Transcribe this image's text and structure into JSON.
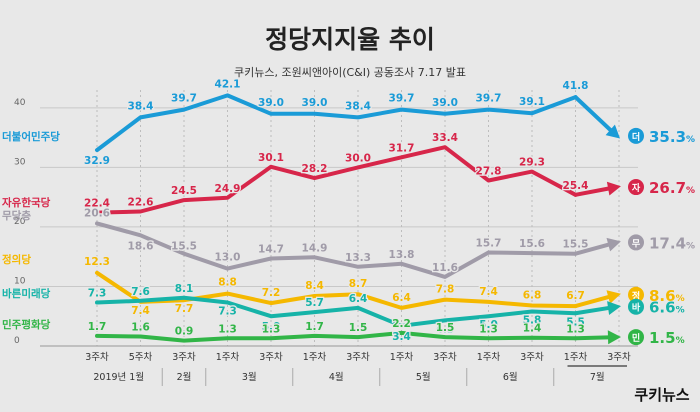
{
  "chart_data": {
    "type": "line",
    "title": "정당지지율 추이",
    "subtitle": "쿠키뉴스, 조원씨앤아이(C&I) 공동조사 7.17 발표",
    "yticks": [
      0,
      10,
      20,
      30,
      40
    ],
    "ylim": [
      0,
      43
    ],
    "x": [
      "3주차",
      "5주차",
      "3주차",
      "1주차",
      "3주차",
      "1주차",
      "3주차",
      "1주차",
      "3주차",
      "1주차",
      "3주차",
      "1주차",
      "3주차"
    ],
    "month_labels": [
      {
        "label": "2019년 1월",
        "from": 0,
        "to": 1
      },
      {
        "label": "2월",
        "from": 2,
        "to": 2
      },
      {
        "label": "3월",
        "from": 3,
        "to": 4
      },
      {
        "label": "4월",
        "from": 5,
        "to": 6
      },
      {
        "label": "5월",
        "from": 7,
        "to": 8
      },
      {
        "label": "6월",
        "from": 9,
        "to": 10
      },
      {
        "label": "7월",
        "from": 11,
        "to": 12
      }
    ],
    "series": [
      {
        "name": "더불어민주당",
        "badge": "더",
        "final": "35.3",
        "color": "#1a9bd7",
        "values": [
          32.9,
          38.4,
          39.7,
          42.1,
          39.0,
          39.0,
          38.4,
          39.7,
          39.0,
          39.7,
          39.1,
          41.8,
          35.3
        ]
      },
      {
        "name": "자유한국당",
        "badge": "자",
        "final": "26.7",
        "color": "#d7264a",
        "values": [
          22.4,
          22.6,
          24.5,
          24.9,
          30.1,
          28.2,
          30.0,
          31.7,
          33.4,
          27.8,
          29.3,
          25.4,
          26.7
        ]
      },
      {
        "name": "무당층",
        "badge": "무",
        "final": "17.4",
        "color": "#a09ba8",
        "values": [
          20.6,
          18.6,
          15.5,
          13.0,
          14.7,
          14.9,
          13.3,
          13.8,
          11.6,
          15.7,
          15.6,
          15.5,
          17.4
        ]
      },
      {
        "name": "정의당",
        "badge": "정",
        "final": "8.6",
        "color": "#f5b800",
        "values": [
          12.3,
          7.4,
          7.7,
          8.8,
          7.2,
          8.4,
          8.7,
          6.4,
          7.8,
          7.4,
          6.8,
          6.7,
          8.6
        ]
      },
      {
        "name": "바른미래당",
        "badge": "바",
        "final": "6.6",
        "color": "#16b3a8",
        "values": [
          7.3,
          7.6,
          8.1,
          7.3,
          5.0,
          5.7,
          6.4,
          3.4,
          4.3,
          5.0,
          5.8,
          5.5,
          6.6
        ]
      },
      {
        "name": "민주평화당",
        "badge": "민",
        "final": "1.5",
        "color": "#31b547",
        "values": [
          1.7,
          1.6,
          0.9,
          1.3,
          1.3,
          1.7,
          1.5,
          2.2,
          1.5,
          1.3,
          1.4,
          1.3,
          1.5
        ]
      }
    ],
    "grid": true
  },
  "logo": "쿠키뉴스"
}
